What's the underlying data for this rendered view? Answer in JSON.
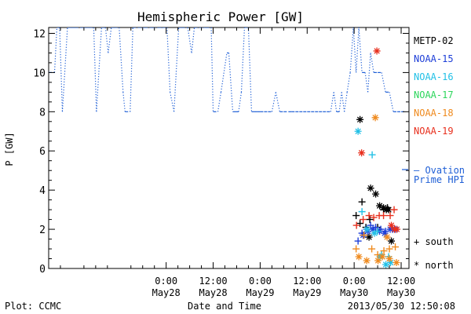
{
  "chart_data": {
    "type": "scatter",
    "title": "Hemispheric Power [GW]",
    "ylabel": "P [GW]",
    "xlabel": "Date and Time",
    "ylim": [
      0,
      12.3
    ],
    "xlim": [
      -30,
      62
    ],
    "x_units": "hours from 2013-05-28 00:00 UT",
    "yticks": [
      0,
      2,
      4,
      6,
      8,
      10,
      12
    ],
    "xticks": [
      {
        "x": 0,
        "top": "0:00",
        "bottom": "May28"
      },
      {
        "x": 12,
        "top": "12:00",
        "bottom": "May28"
      },
      {
        "x": 24,
        "top": "0:00",
        "bottom": "May29"
      },
      {
        "x": 36,
        "top": "12:00",
        "bottom": "May29"
      },
      {
        "x": 48,
        "top": "0:00",
        "bottom": "May30"
      },
      {
        "x": 60,
        "top": "12:00",
        "bottom": "May30"
      }
    ],
    "footer_left": "Plot: CCMC",
    "footer_right": "2013/05/30 12:50:08",
    "legend_placement": "right",
    "model": {
      "name": "Ovation Prime HPI",
      "legend_line1": "— Ovation",
      "legend_line2": "Prime HPI",
      "color": "#1f5fd6",
      "x": [
        -30,
        -28.5,
        -27.9,
        -27.2,
        -26.5,
        -25.2,
        -24.6,
        -24.0,
        -23.2,
        -22.0,
        -21.2,
        -20.5,
        -19.7,
        -18.5,
        -17.8,
        -16.5,
        -15.5,
        -14.8,
        -14.0,
        -13.2,
        -12.0,
        -11.0,
        -10.5,
        -9.2,
        -8.5,
        -7.2,
        -6.2,
        -5.5,
        -4.2,
        -3.5,
        -2.0,
        -1.0,
        0.2,
        1.0,
        2.0,
        3.2,
        4.0,
        5.5,
        6.5,
        7.2,
        8.5,
        9.5,
        10.2,
        11.5,
        12.0,
        13.2,
        14.0,
        15.5,
        16.0,
        17.0,
        17.8,
        18.5,
        19.2,
        20.0,
        21.0,
        21.8,
        22.5,
        23.2,
        24.0,
        25.0,
        26.0,
        27.0,
        28.0,
        29.0,
        30.0,
        31.2,
        32.0,
        33.0,
        34.0,
        35.0,
        36.0,
        37.0,
        38.0,
        39.0,
        40.0,
        41.0,
        42.0,
        42.8,
        43.5,
        44.2,
        44.8,
        45.5,
        46.2,
        47.0,
        47.8,
        48.5,
        49.2,
        50.0,
        50.8,
        51.5,
        52.2,
        53.0,
        54.0,
        55.0,
        56.0,
        57.0,
        58.0,
        59.0,
        60.0,
        61.0
      ],
      "y": [
        10,
        10,
        12.3,
        12.3,
        8,
        12.3,
        12.3,
        12.3,
        12.3,
        12.3,
        12.3,
        12.3,
        12.3,
        12.3,
        8,
        12.3,
        12.3,
        11,
        12.3,
        12.3,
        12.3,
        9,
        8,
        8,
        12.3,
        12.3,
        12.3,
        12.3,
        12.3,
        12.3,
        12.3,
        12.3,
        12.3,
        9,
        8,
        12.3,
        12.3,
        12.3,
        11,
        12.3,
        12.3,
        12.3,
        12.3,
        12.3,
        8,
        8,
        9,
        11,
        11,
        8,
        8,
        8,
        9,
        12.3,
        12.3,
        8,
        8,
        8,
        8,
        8,
        8,
        8,
        9,
        8,
        8,
        8,
        8,
        8,
        8,
        8,
        8,
        8,
        8,
        8,
        8,
        8,
        8,
        9,
        8,
        8,
        9,
        8,
        9,
        10,
        12.3,
        10,
        12.3,
        10,
        10,
        9,
        11,
        10,
        10,
        10,
        9,
        9,
        8,
        8,
        8,
        8
      ]
    },
    "satellites": [
      {
        "name": "METP-02",
        "color": "#000000",
        "south": {
          "x": [
            48.5,
            49.5,
            50.0,
            50.5,
            51.0,
            52.0,
            54.0,
            55.5,
            56.5
          ],
          "y": [
            2.7,
            2.3,
            3.4,
            1.7,
            2.1,
            2.5,
            2.1,
            3.0,
            3.1
          ]
        },
        "north": {
          "x": [
            49.5,
            51.8,
            52.2,
            53.5,
            54.5,
            55.5,
            56.2,
            56.8,
            57.5
          ],
          "y": [
            7.6,
            1.6,
            4.1,
            3.8,
            3.2,
            3.1,
            3.0,
            3.0,
            1.4
          ]
        }
      },
      {
        "name": "NOAA-15",
        "color": "#1e3fd8",
        "south": {
          "x": [
            49.0,
            50.0,
            51.2,
            52.2,
            53.5,
            54.8,
            56.0,
            57.8
          ],
          "y": [
            1.4,
            1.8,
            2.0,
            2.2,
            2.1,
            2.0,
            1.9,
            2.0
          ]
        },
        "north": {
          "x": [
            50.3,
            51.5,
            52.8,
            54.5,
            55.8,
            57.2,
            58.5
          ],
          "y": [
            1.7,
            1.9,
            2.0,
            1.9,
            1.8,
            2.0,
            2.0
          ]
        }
      },
      {
        "name": "NOAA-16",
        "color": "#22c0e6",
        "south": {
          "x": [
            50.0,
            52.6,
            54.0,
            55.0,
            56.8
          ],
          "y": [
            2.9,
            5.8,
            1.9,
            0.7,
            0.6
          ]
        },
        "north": {
          "x": [
            49.0,
            51.3,
            53.2,
            54.6,
            56.1,
            57.3
          ],
          "y": [
            7.0,
            2.0,
            1.8,
            0.6,
            0.2,
            0.3
          ]
        }
      },
      {
        "name": "NOAA-17",
        "color": "#2dd65c",
        "south": {
          "x": [],
          "y": []
        },
        "north": {
          "x": [],
          "y": []
        }
      },
      {
        "name": "NOAA-18",
        "color": "#ef8a1e",
        "south": {
          "x": [
            48.5,
            50.5,
            52.5,
            54.0,
            55.6,
            57.0,
            58.5
          ],
          "y": [
            1.0,
            1.7,
            1.0,
            0.7,
            0.9,
            1.0,
            1.1
          ]
        },
        "north": {
          "x": [
            49.2,
            51.2,
            53.4,
            54.1,
            55.2,
            56.4,
            57.0,
            58.8
          ],
          "y": [
            0.6,
            0.4,
            7.7,
            0.4,
            0.6,
            1.6,
            0.5,
            0.3
          ]
        }
      },
      {
        "name": "NOAA-19",
        "color": "#e8301e",
        "south": {
          "x": [
            48.6,
            50.3,
            51.8,
            53.0,
            54.4,
            55.5,
            57.2,
            58.2
          ],
          "y": [
            2.2,
            2.5,
            2.7,
            2.6,
            2.7,
            2.7,
            2.7,
            3.0
          ]
        },
        "north": {
          "x": [
            49.9,
            53.8,
            57.5,
            58.3,
            58.9
          ],
          "y": [
            5.9,
            11.1,
            2.2,
            2.0,
            2.0
          ]
        }
      }
    ],
    "symbol_legend": {
      "south": "+ south",
      "north": "* north"
    }
  }
}
